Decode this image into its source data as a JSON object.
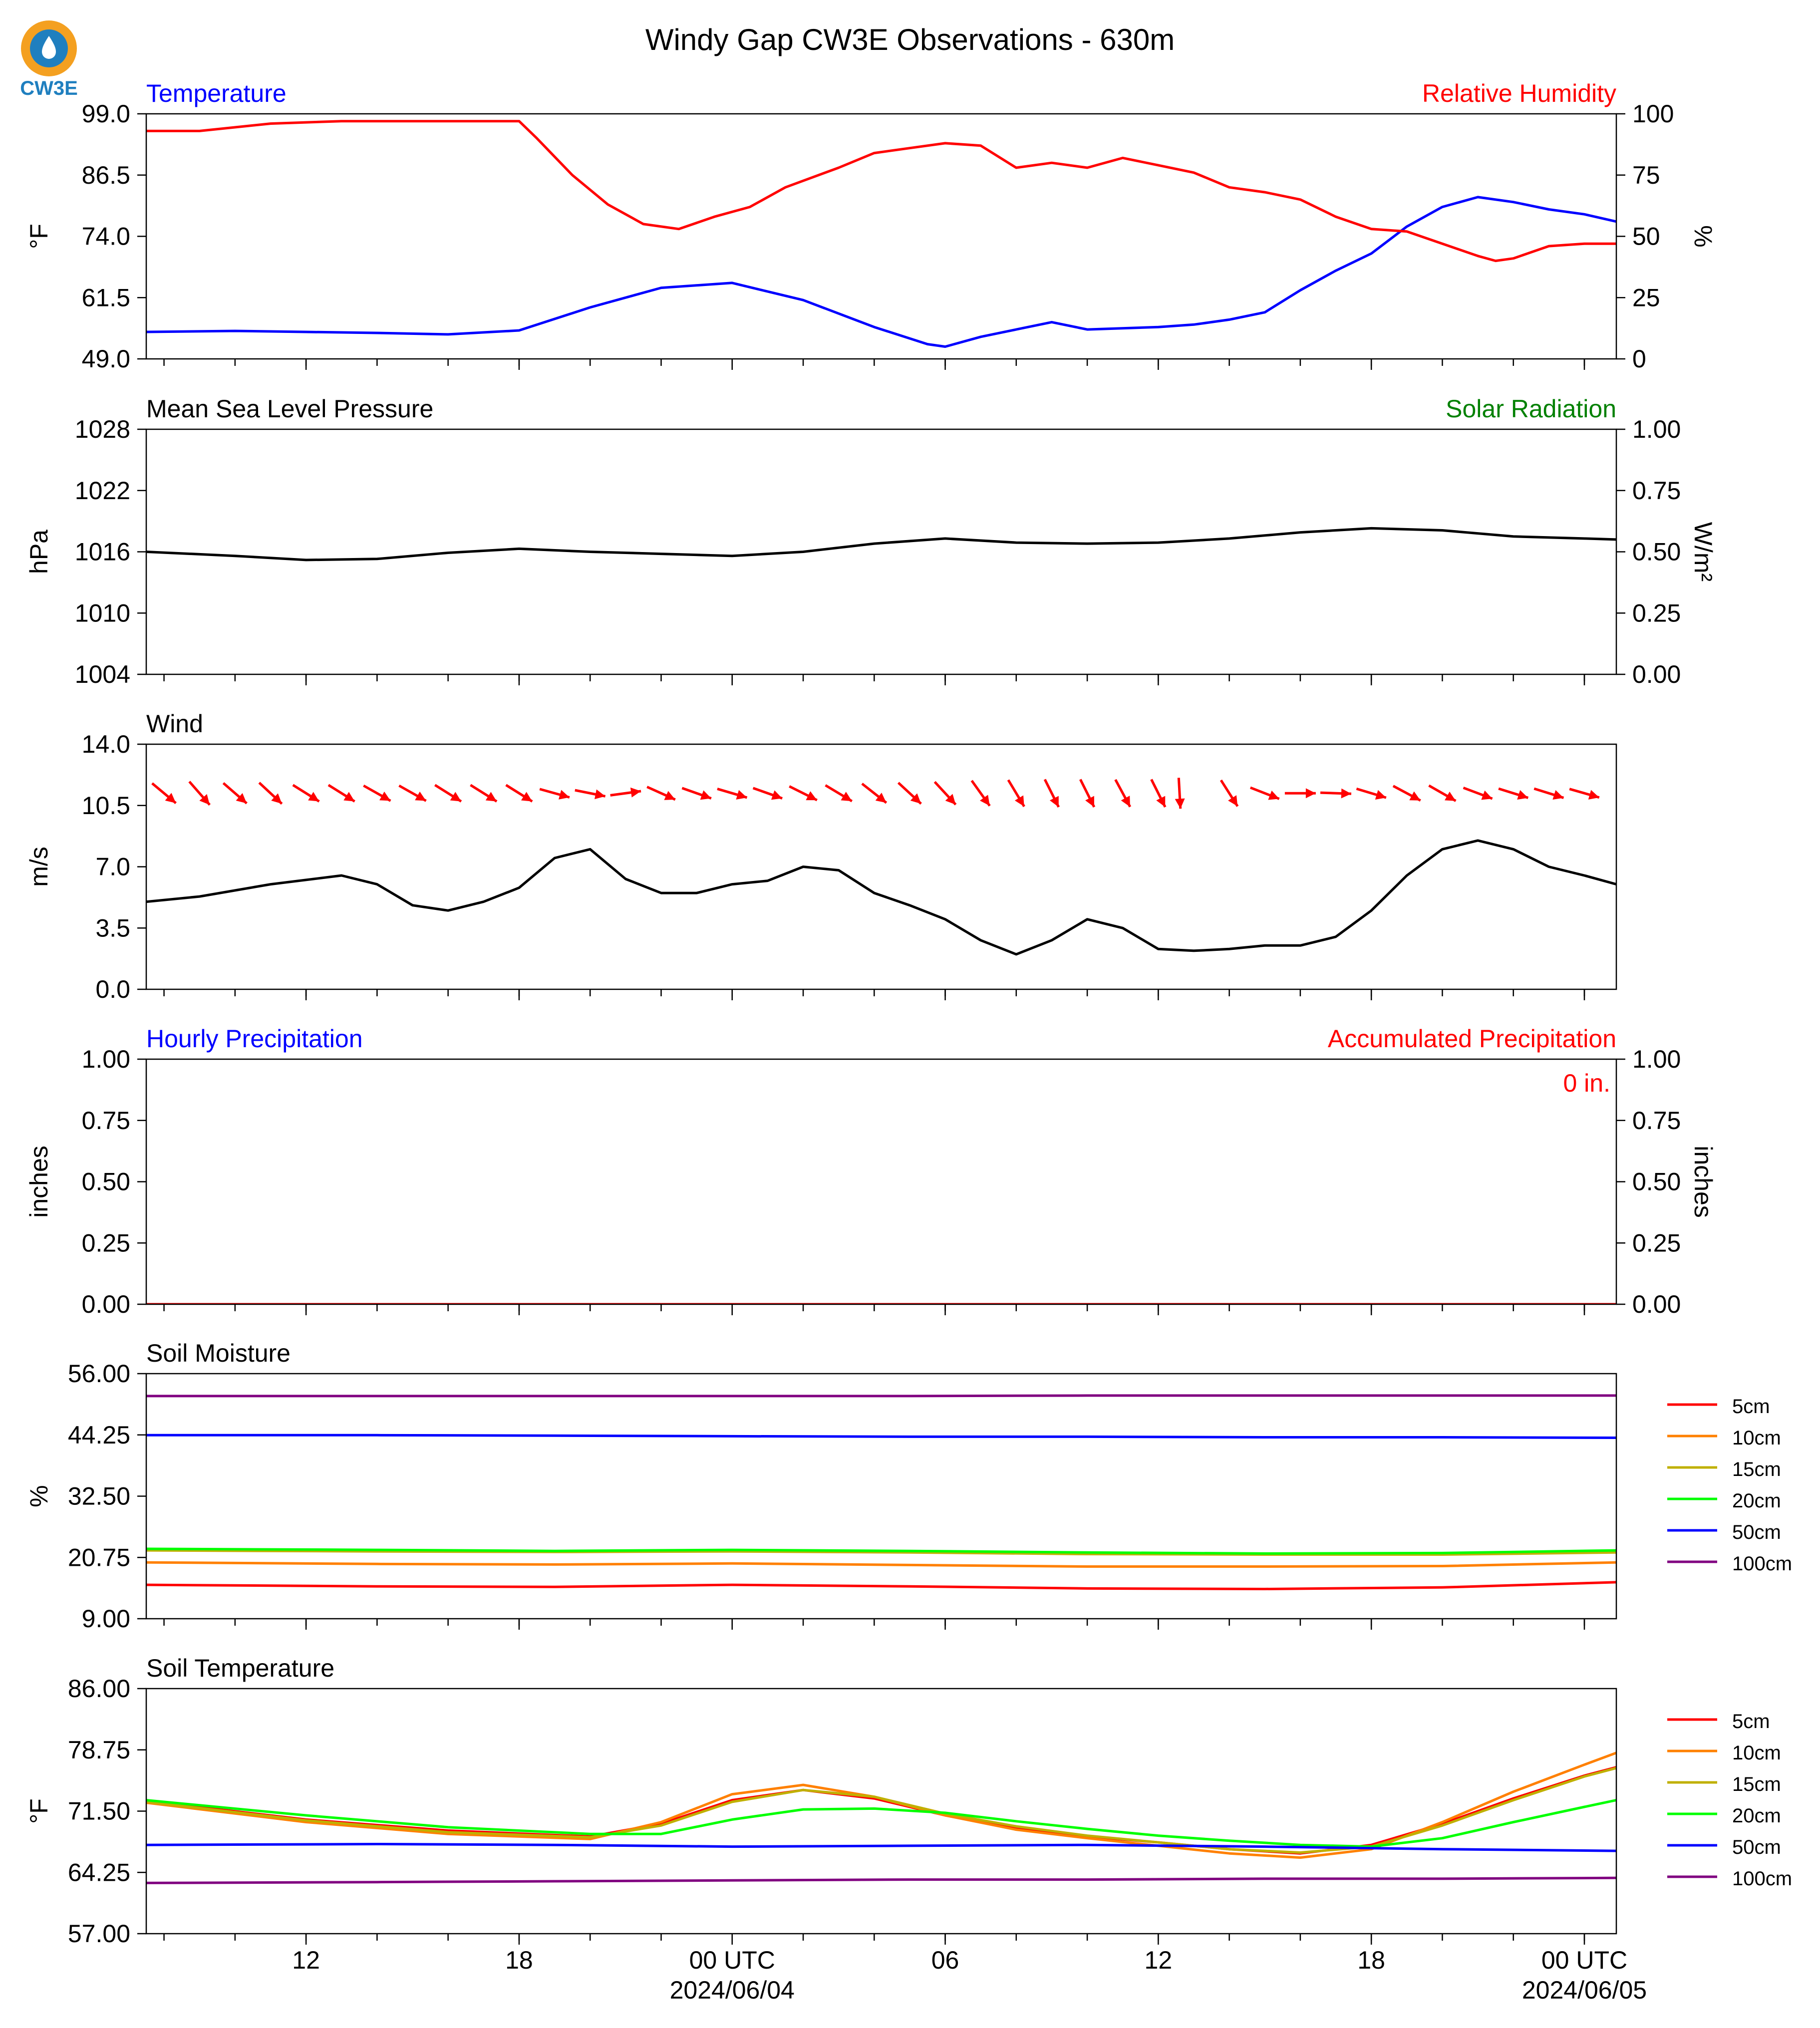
{
  "title": "Windy Gap CW3E Observations - 630m",
  "logo": {
    "text": "CW3E",
    "colors": {
      "outer": "#f4a020",
      "inner": "#1f7fbf"
    }
  },
  "colors": {
    "blue": "#0000ff",
    "red": "#ff0000",
    "green": "#008000",
    "black": "#000000"
  },
  "x_axis": {
    "tick_labels": [
      "12",
      "18",
      "00 UTC",
      "06",
      "12",
      "18",
      "00 UTC"
    ],
    "tick_hours": [
      -12,
      -6,
      0,
      6,
      12,
      18,
      24
    ],
    "date_labels": [
      "2024/06/04",
      "2024/06/05"
    ],
    "date_hours": [
      0,
      24
    ],
    "range_hours": [
      -16.5,
      24.9
    ]
  },
  "chart_data": [
    {
      "type": "line",
      "title": "Temperature",
      "right_title": "Relative Humidity",
      "ylabel": "°F",
      "ylabel_right": "%",
      "ylim": [
        49.0,
        99.0
      ],
      "ylim_right": [
        0,
        100
      ],
      "yticks": [
        "99.0",
        "86.5",
        "74.0",
        "61.5",
        "49.0"
      ],
      "yticks_right": [
        "100",
        "75",
        "50",
        "25",
        "0"
      ],
      "series": [
        {
          "axis": "left",
          "color": "#0000ff",
          "x": [
            -16.5,
            -14,
            -12,
            -10,
            -8,
            -6,
            -4,
            -2,
            0,
            2,
            4,
            5.5,
            6,
            7,
            8,
            9,
            10,
            12,
            13,
            14,
            15,
            16,
            17,
            18,
            19,
            20,
            21,
            22,
            23,
            24,
            24.9
          ],
          "y": [
            54.5,
            54.7,
            54.5,
            54.3,
            54.0,
            54.8,
            59.5,
            63.5,
            64.5,
            61.0,
            55.5,
            52.0,
            51.5,
            53.5,
            55.0,
            56.5,
            55.0,
            55.5,
            56.0,
            57.0,
            58.5,
            63.0,
            67.0,
            70.5,
            76.0,
            80.0,
            82.0,
            81.0,
            79.5,
            78.5,
            77.0
          ]
        },
        {
          "axis": "right",
          "color": "#ff0000",
          "x": [
            -16.5,
            -15,
            -13,
            -11,
            -9,
            -7,
            -6,
            -5.5,
            -4.5,
            -3.5,
            -2.5,
            -1.5,
            -0.5,
            0.5,
            1.5,
            3,
            4,
            5,
            6,
            7,
            8,
            9,
            10,
            11,
            12,
            13,
            14,
            15,
            16,
            17,
            18,
            19,
            20,
            21,
            21.5,
            22,
            23,
            24,
            24.9
          ],
          "y": [
            93,
            93,
            96,
            97,
            97,
            97,
            97,
            90,
            75,
            63,
            55,
            53,
            58,
            62,
            70,
            78,
            84,
            86,
            88,
            87,
            78,
            80,
            78,
            82,
            79,
            76,
            70,
            68,
            65,
            58,
            53,
            52,
            47,
            42,
            40,
            41,
            46,
            47,
            47
          ]
        }
      ]
    },
    {
      "type": "line",
      "title": "Mean Sea Level Pressure",
      "right_title": "Solar Radiation",
      "ylabel": "hPa",
      "ylabel_right": "W/m²",
      "ylim": [
        1004,
        1028
      ],
      "ylim_right": [
        0.0,
        1.0
      ],
      "yticks": [
        "1028",
        "1022",
        "1016",
        "1010",
        "1004"
      ],
      "yticks_right": [
        "1.00",
        "0.75",
        "0.50",
        "0.25",
        "0.00"
      ],
      "series": [
        {
          "axis": "left",
          "color": "#000000",
          "x": [
            -16.5,
            -14,
            -12,
            -10,
            -8,
            -6,
            -4,
            -2,
            0,
            2,
            4,
            6,
            8,
            10,
            12,
            14,
            16,
            18,
            20,
            22,
            24,
            24.9
          ],
          "y": [
            1016.0,
            1015.6,
            1015.2,
            1015.3,
            1015.9,
            1016.3,
            1016.0,
            1015.8,
            1015.6,
            1016.0,
            1016.8,
            1017.3,
            1016.9,
            1016.8,
            1016.9,
            1017.3,
            1017.9,
            1018.3,
            1018.1,
            1017.5,
            1017.3,
            1017.2
          ]
        }
      ]
    },
    {
      "type": "line",
      "title": "Wind",
      "ylabel": "m/s",
      "ylim": [
        0.0,
        14.0
      ],
      "yticks": [
        "14.0",
        "10.5",
        "7.0",
        "3.5",
        "0.0"
      ],
      "series": [
        {
          "axis": "left",
          "color": "#000000",
          "x": [
            -16.5,
            -15,
            -13,
            -11,
            -10,
            -9,
            -8,
            -7,
            -6,
            -5,
            -4,
            -3,
            -2,
            -1,
            0,
            1,
            2,
            3,
            4,
            5,
            6,
            7,
            8,
            9,
            10,
            11,
            12,
            13,
            14,
            15,
            16,
            17,
            18,
            19,
            20,
            21,
            22,
            23,
            24,
            24.9
          ],
          "y": [
            5.0,
            5.3,
            6.0,
            6.5,
            6.0,
            4.8,
            4.5,
            5.0,
            5.8,
            7.5,
            8.0,
            6.3,
            5.5,
            5.5,
            6.0,
            6.2,
            7.0,
            6.8,
            5.5,
            4.8,
            4.0,
            2.8,
            2.0,
            2.8,
            4.0,
            3.5,
            2.3,
            2.2,
            2.3,
            2.5,
            2.5,
            3.0,
            4.5,
            6.5,
            8.0,
            8.5,
            8.0,
            7.0,
            6.5,
            6.0
          ]
        },
        {
          "axis": "left",
          "color": "#ff0000",
          "kind": "wind_vectors",
          "x": [
            -16.0,
            -15.0,
            -14.0,
            -13.0,
            -12.0,
            -11.0,
            -10.0,
            -9.0,
            -8.0,
            -7.0,
            -6.0,
            -5.0,
            -4.0,
            -3.0,
            -2.0,
            -1.0,
            0.0,
            1.0,
            2.0,
            3.0,
            4.0,
            5.0,
            6.0,
            7.0,
            8.0,
            9.0,
            10.0,
            11.0,
            12.0,
            12.6,
            14.0,
            15.0,
            16.0,
            17.0,
            18.0,
            19.0,
            20.0,
            21.0,
            22.0,
            23.0,
            24.0
          ],
          "u": [
            1.8,
            1.4,
            1.5,
            1.4,
            1.6,
            1.6,
            1.6,
            1.6,
            1.6,
            1.6,
            1.6,
            1.8,
            2.0,
            2.2,
            2.0,
            1.7,
            1.7,
            1.7,
            1.6,
            1.5,
            1.4,
            1.3,
            1.2,
            1.0,
            0.9,
            0.8,
            0.7,
            0.7,
            0.7,
            0.1,
            0.7,
            1.8,
            2.5,
            3.0,
            2.0,
            1.5,
            1.4,
            1.6,
            1.6,
            1.6,
            1.4
          ],
          "v": [
            -1.5,
            -1.6,
            -1.3,
            -1.3,
            -1.0,
            -1.0,
            -0.9,
            -0.9,
            -1.0,
            -1.0,
            -1.0,
            -0.5,
            -0.4,
            0.3,
            -0.9,
            -0.6,
            -0.5,
            -0.6,
            -0.8,
            -0.9,
            -1.1,
            -1.2,
            -1.3,
            -1.4,
            -1.5,
            -1.6,
            -1.4,
            -1.3,
            -1.4,
            -1.8,
            -1.1,
            -0.7,
            0.0,
            -0.1,
            -0.6,
            -0.8,
            -0.8,
            -0.6,
            -0.5,
            -0.5,
            -0.4
          ]
        }
      ]
    },
    {
      "type": "line",
      "title": "Hourly Precipitation",
      "right_title": "Accumulated Precipitation",
      "ylabel": "inches",
      "ylabel_right": "inches",
      "ylim": [
        0.0,
        1.0
      ],
      "ylim_right": [
        0.0,
        1.0
      ],
      "yticks": [
        "1.00",
        "0.75",
        "0.50",
        "0.25",
        "0.00"
      ],
      "yticks_right": [
        "1.00",
        "0.75",
        "0.50",
        "0.25",
        "0.00"
      ],
      "annotation": "0 in.",
      "series": [
        {
          "axis": "left",
          "color": "#ff0000",
          "x": [
            -16.5,
            24.9
          ],
          "y": [
            0.0,
            0.0
          ]
        }
      ]
    },
    {
      "type": "line",
      "title": "Soil Moisture",
      "ylabel": "%",
      "ylim": [
        9.0,
        56.0
      ],
      "yticks": [
        "56.00",
        "44.25",
        "32.50",
        "20.75",
        "9.00"
      ],
      "legend": "right",
      "series": [
        {
          "name": "5cm",
          "color": "#ff0000",
          "x": [
            -16.5,
            -10,
            -5,
            0,
            5,
            10,
            15,
            20,
            24.9
          ],
          "y": [
            15.5,
            15.2,
            15.1,
            15.5,
            15.2,
            14.8,
            14.7,
            15.0,
            16.0
          ]
        },
        {
          "name": "10cm",
          "color": "#ff8000",
          "x": [
            -16.5,
            -10,
            -5,
            0,
            5,
            10,
            15,
            20,
            24.9
          ],
          "y": [
            19.8,
            19.5,
            19.4,
            19.6,
            19.3,
            19.0,
            19.0,
            19.1,
            19.8
          ]
        },
        {
          "name": "15cm",
          "color": "#c0b000",
          "x": [
            -16.5,
            -10,
            -5,
            0,
            5,
            10,
            15,
            20,
            24.9
          ],
          "y": [
            22.1,
            21.9,
            21.8,
            21.9,
            21.7,
            21.4,
            21.3,
            21.3,
            21.7
          ]
        },
        {
          "name": "20cm",
          "color": "#00ff00",
          "x": [
            -16.5,
            -10,
            -5,
            0,
            5,
            10,
            15,
            20,
            24.9
          ],
          "y": [
            22.4,
            22.2,
            22.0,
            22.2,
            22.0,
            21.7,
            21.5,
            21.6,
            22.1
          ]
        },
        {
          "name": "50cm",
          "color": "#0000ff",
          "x": [
            -16.5,
            -10,
            -5,
            0,
            5,
            10,
            15,
            20,
            24.9
          ],
          "y": [
            44.2,
            44.2,
            44.1,
            44.0,
            43.9,
            43.9,
            43.8,
            43.8,
            43.7
          ]
        },
        {
          "name": "100cm",
          "color": "#800080",
          "x": [
            -16.5,
            -10,
            -5,
            0,
            5,
            10,
            15,
            20,
            24.9
          ],
          "y": [
            51.7,
            51.7,
            51.7,
            51.7,
            51.7,
            51.8,
            51.8,
            51.8,
            51.8
          ]
        }
      ]
    },
    {
      "type": "line",
      "title": "Soil Temperature",
      "ylabel": "°F",
      "ylim": [
        57.0,
        86.0
      ],
      "yticks": [
        "86.00",
        "78.75",
        "71.50",
        "64.25",
        "57.00"
      ],
      "legend": "right",
      "series": [
        {
          "name": "5cm",
          "color": "#ff0000",
          "x": [
            -16.5,
            -12,
            -8,
            -4,
            -2,
            0,
            2,
            4,
            6,
            8,
            10,
            12,
            14,
            16,
            18,
            20,
            22,
            24,
            24.9
          ],
          "y": [
            72.7,
            70.5,
            69.2,
            68.5,
            70.0,
            72.8,
            74.0,
            73.0,
            71.0,
            69.5,
            68.5,
            67.8,
            67.0,
            66.5,
            67.5,
            70.0,
            73.0,
            75.7,
            76.7
          ]
        },
        {
          "name": "10cm",
          "color": "#ff8000",
          "x": [
            -16.5,
            -12,
            -8,
            -4,
            -2,
            0,
            2,
            4,
            6,
            8,
            10,
            12,
            14,
            16,
            18,
            20,
            22,
            24,
            24.9
          ],
          "y": [
            72.5,
            70.2,
            68.8,
            68.2,
            70.2,
            73.5,
            74.6,
            73.2,
            71.0,
            69.3,
            68.3,
            67.4,
            66.5,
            66.0,
            67.0,
            70.2,
            73.8,
            77.0,
            78.4
          ]
        },
        {
          "name": "15cm",
          "color": "#c0b000",
          "x": [
            -16.5,
            -12,
            -8,
            -4,
            -2,
            0,
            2,
            4,
            6,
            8,
            10,
            12,
            14,
            16,
            18,
            20,
            22,
            24,
            24.9
          ],
          "y": [
            72.6,
            70.4,
            69.0,
            68.4,
            69.8,
            72.6,
            74.0,
            73.2,
            71.2,
            69.7,
            68.6,
            67.8,
            67.0,
            66.6,
            67.3,
            69.8,
            72.8,
            75.6,
            76.6
          ]
        },
        {
          "name": "20cm",
          "color": "#00ff00",
          "x": [
            -16.5,
            -12,
            -8,
            -4,
            -2,
            0,
            2,
            4,
            6,
            8,
            10,
            12,
            14,
            16,
            18,
            20,
            22,
            24,
            24.9
          ],
          "y": [
            72.8,
            71.0,
            69.6,
            68.8,
            68.8,
            70.5,
            71.7,
            71.8,
            71.3,
            70.3,
            69.4,
            68.6,
            68.0,
            67.5,
            67.3,
            68.3,
            70.2,
            72.0,
            72.8
          ]
        },
        {
          "name": "50cm",
          "color": "#0000ff",
          "x": [
            -16.5,
            -10,
            -5,
            0,
            5,
            10,
            15,
            20,
            24.9
          ],
          "y": [
            67.5,
            67.6,
            67.5,
            67.3,
            67.4,
            67.5,
            67.3,
            67.0,
            66.8
          ]
        },
        {
          "name": "100cm",
          "color": "#800080",
          "x": [
            -16.5,
            -10,
            -5,
            0,
            5,
            10,
            15,
            20,
            24.9
          ],
          "y": [
            63.0,
            63.1,
            63.2,
            63.3,
            63.4,
            63.4,
            63.5,
            63.5,
            63.6
          ]
        }
      ]
    }
  ]
}
